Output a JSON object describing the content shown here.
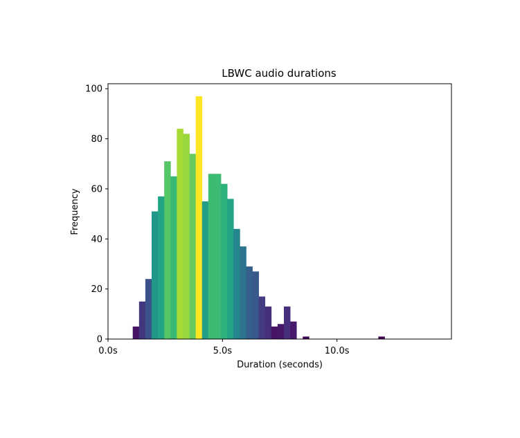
{
  "chart_data": {
    "type": "bar",
    "title": "LBWC audio durations",
    "xlabel": "Duration (seconds)",
    "ylabel": "Frequency",
    "xlim": [
      0,
      15
    ],
    "ylim": [
      0,
      102
    ],
    "grid": false,
    "xticks": [
      {
        "value": 0,
        "label": "0.0s"
      },
      {
        "value": 5,
        "label": "5.0s"
      },
      {
        "value": 10,
        "label": "10.0s"
      }
    ],
    "yticks": [
      {
        "value": 0,
        "label": "0"
      },
      {
        "value": 20,
        "label": "20"
      },
      {
        "value": 40,
        "label": "40"
      },
      {
        "value": 60,
        "label": "60"
      },
      {
        "value": 80,
        "label": "80"
      },
      {
        "value": 100,
        "label": "100"
      }
    ],
    "bin_width": 0.275,
    "bins": [
      {
        "x": 1.08,
        "value": 5
      },
      {
        "x": 1.355,
        "value": 15
      },
      {
        "x": 1.63,
        "value": 24
      },
      {
        "x": 1.905,
        "value": 51
      },
      {
        "x": 2.18,
        "value": 57
      },
      {
        "x": 2.455,
        "value": 71
      },
      {
        "x": 2.73,
        "value": 65
      },
      {
        "x": 3.005,
        "value": 84
      },
      {
        "x": 3.28,
        "value": 82
      },
      {
        "x": 3.555,
        "value": 74
      },
      {
        "x": 3.83,
        "value": 97
      },
      {
        "x": 4.105,
        "value": 55
      },
      {
        "x": 4.38,
        "value": 66
      },
      {
        "x": 4.655,
        "value": 66
      },
      {
        "x": 4.93,
        "value": 62
      },
      {
        "x": 5.205,
        "value": 56
      },
      {
        "x": 5.48,
        "value": 44
      },
      {
        "x": 5.755,
        "value": 37
      },
      {
        "x": 6.03,
        "value": 29
      },
      {
        "x": 6.305,
        "value": 27
      },
      {
        "x": 6.58,
        "value": 17
      },
      {
        "x": 6.855,
        "value": 13
      },
      {
        "x": 7.13,
        "value": 5
      },
      {
        "x": 7.405,
        "value": 6
      },
      {
        "x": 7.68,
        "value": 13
      },
      {
        "x": 7.955,
        "value": 7
      },
      {
        "x": 8.505,
        "value": 1
      },
      {
        "x": 11.805,
        "value": 1
      }
    ],
    "colormap": "viridis"
  }
}
